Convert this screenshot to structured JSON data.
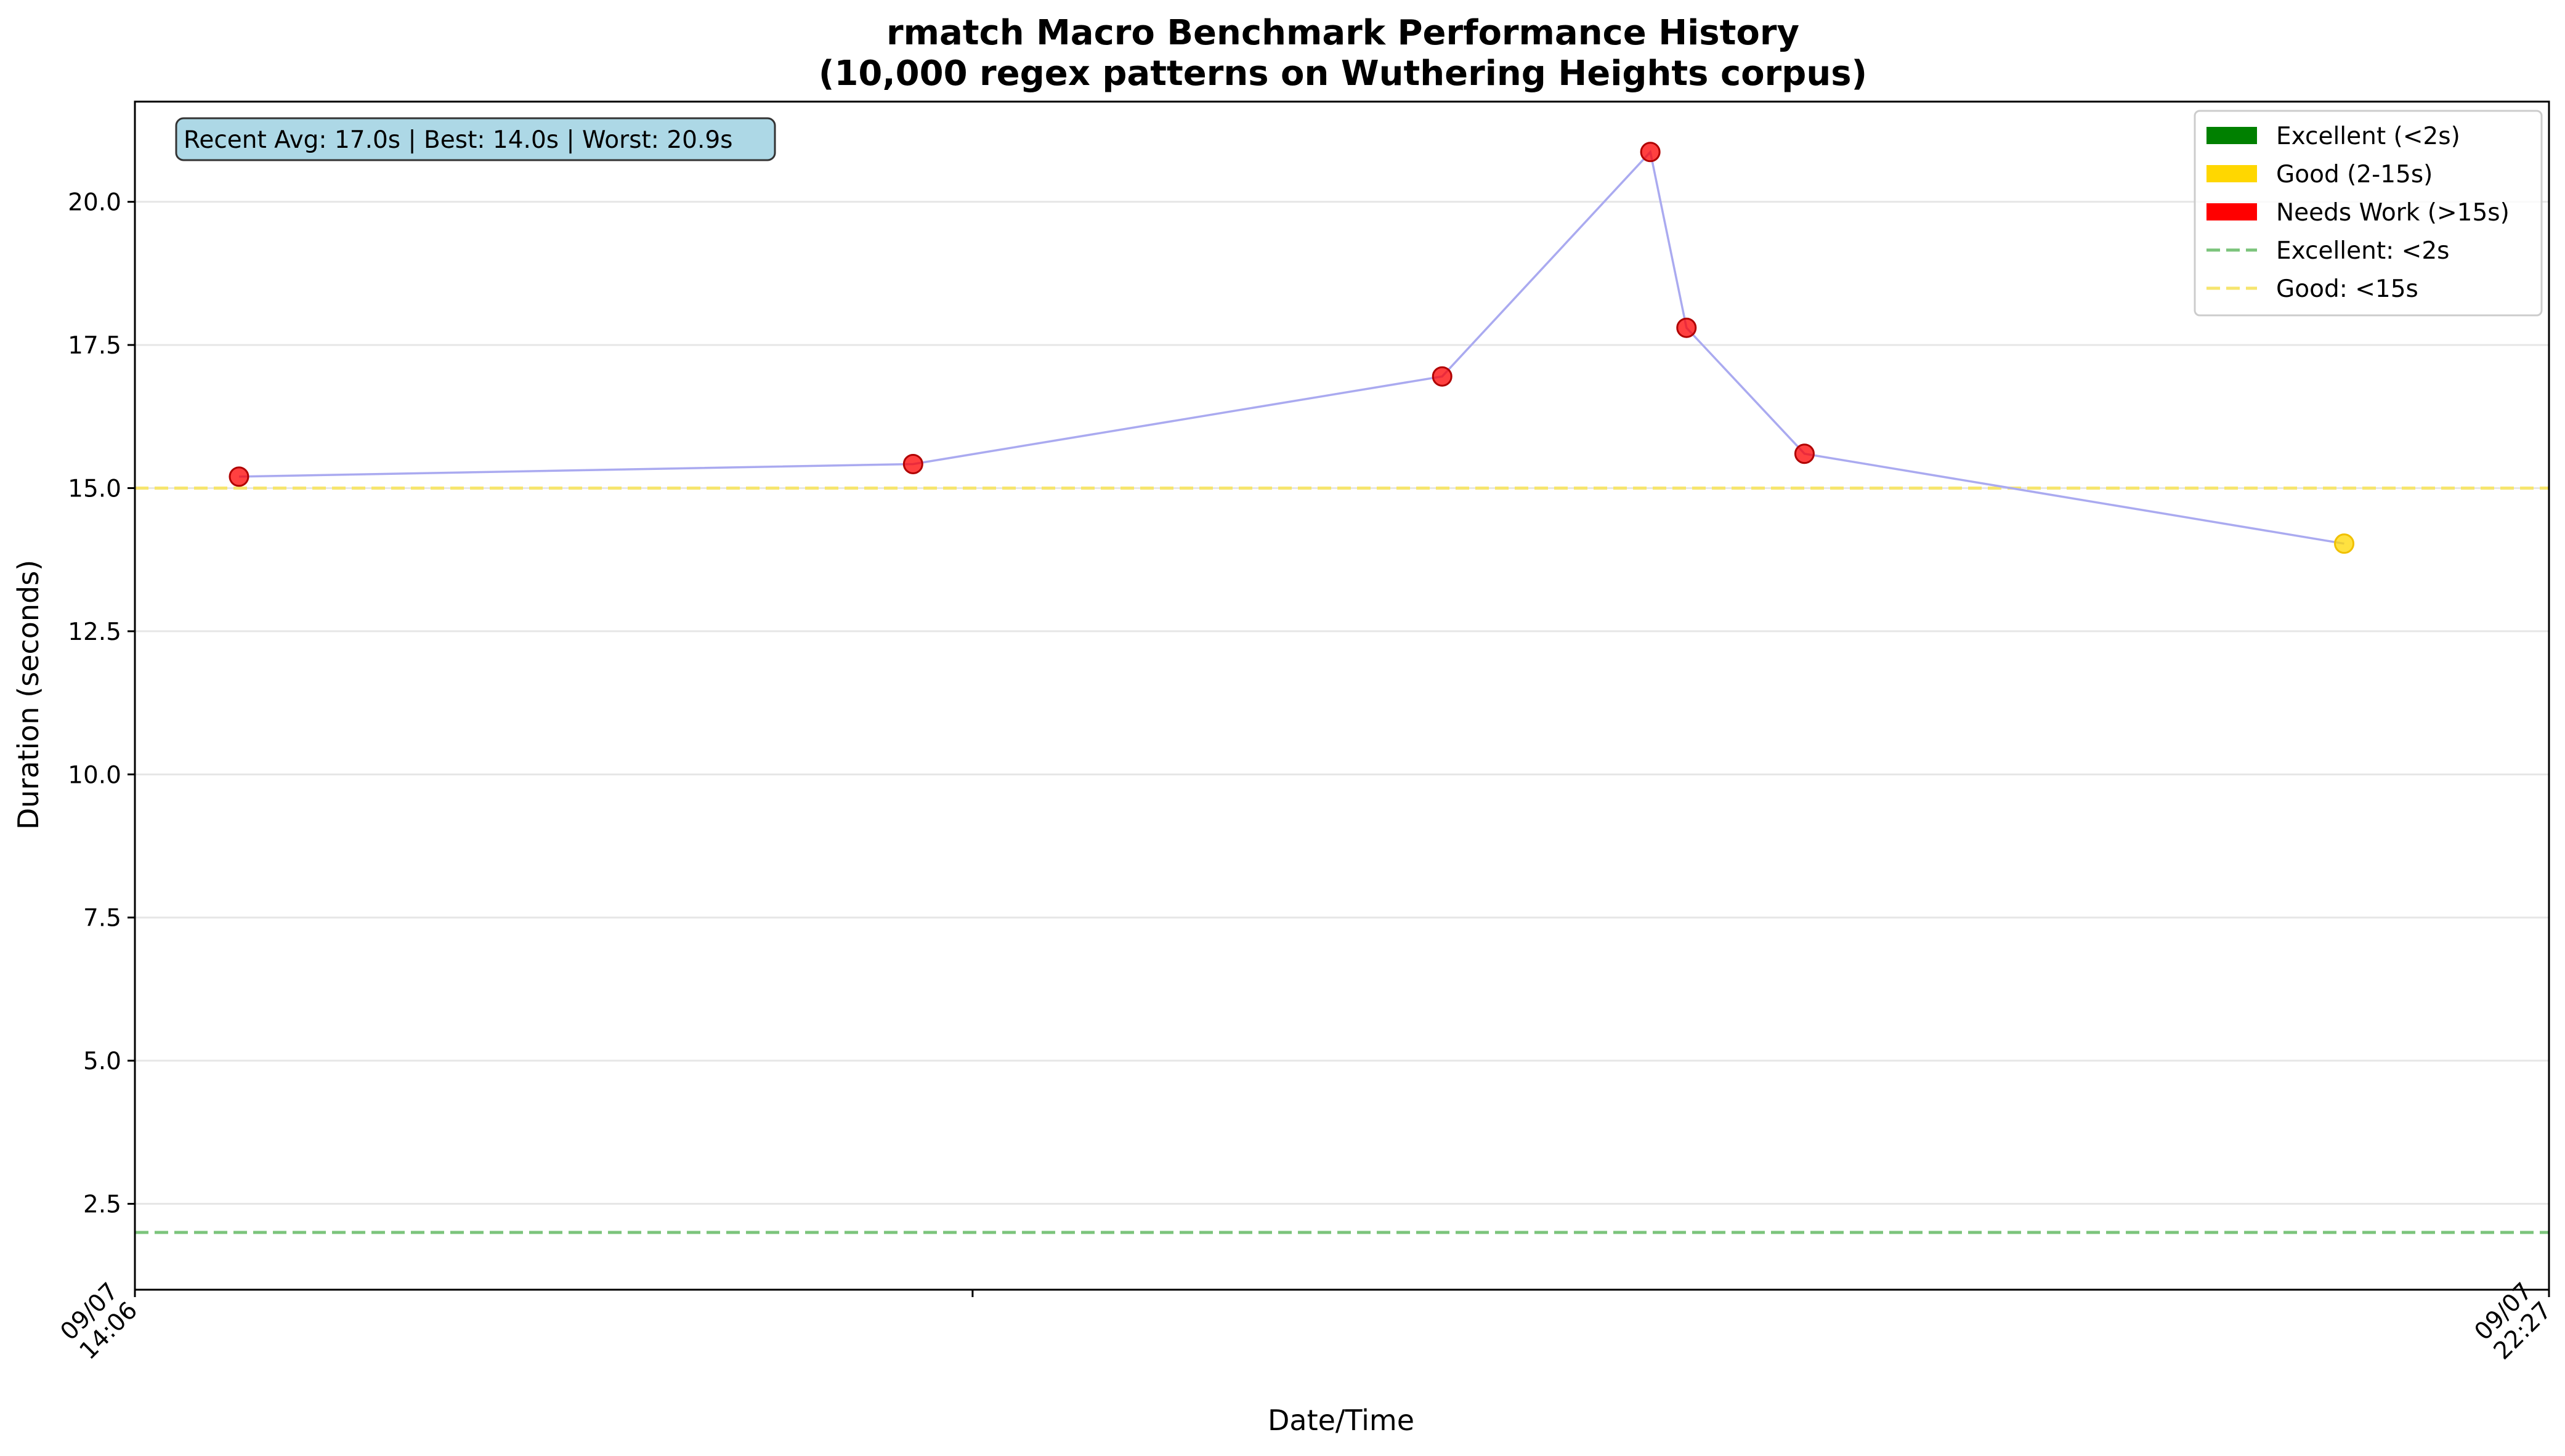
{
  "chart_data": {
    "type": "line",
    "title": "rmatch Macro Benchmark Performance History",
    "subtitle": "(10,000 regex patterns on Wuthering Heights corpus)",
    "xlabel": "Date/Time",
    "ylabel": "Duration (seconds)",
    "ylim": [
      1.0,
      21.75
    ],
    "yticks": [
      "2.5",
      "5.0",
      "7.5",
      "10.0",
      "12.5",
      "15.0",
      "17.5",
      "20.0"
    ],
    "xticks": [
      {
        "date": "09/07",
        "time": "14:06"
      },
      {
        "date": "09/07",
        "time": "22:27"
      }
    ],
    "x_range_minutes": [
      0,
      501
    ],
    "grid": "y",
    "legend_position": "top-right",
    "series": [
      {
        "values": [
          {
            "t": "09/07 14:24",
            "minutes": 21.6,
            "y": 15.2,
            "rating": "needs_work"
          },
          {
            "t": "09/07 16:43",
            "minutes": 161.5,
            "y": 15.42,
            "rating": "needs_work"
          },
          {
            "t": "09/07 18:33",
            "minutes": 271.3,
            "y": 16.95,
            "rating": "needs_work"
          },
          {
            "t": "09/07 19:16",
            "minutes": 314.5,
            "y": 20.87,
            "rating": "needs_work"
          },
          {
            "t": "09/07 19:23",
            "minutes": 322.0,
            "y": 17.8,
            "rating": "needs_work"
          },
          {
            "t": "09/07 19:48",
            "minutes": 346.5,
            "y": 15.6,
            "rating": "needs_work"
          },
          {
            "t": "09/07 21:40",
            "minutes": 458.5,
            "y": 14.03,
            "rating": "good"
          }
        ]
      }
    ],
    "thresholds": [
      {
        "label": "Excellent: <2s",
        "y": 2,
        "color": "#7cc47c"
      },
      {
        "label": "Good: <15s",
        "y": 15,
        "color": "#f6e56e"
      }
    ],
    "legend": [
      {
        "label": "Excellent (<2s)",
        "kind": "patch",
        "color": "#008000"
      },
      {
        "label": "Good (2-15s)",
        "kind": "patch",
        "color": "#ffd700"
      },
      {
        "label": "Needs Work (>15s)",
        "kind": "patch",
        "color": "#ff0000"
      },
      {
        "label": "Excellent: <2s",
        "kind": "dashed",
        "color": "#7cc47c"
      },
      {
        "label": "Good: <15s",
        "kind": "dashed",
        "color": "#f6e56e"
      }
    ],
    "stats_box": "Recent Avg: 17.0s | Best: 14.0s | Worst: 20.9s",
    "colors": {
      "line": "#aaaaf0",
      "needs_work": "#ff0000",
      "good": "#ffd700",
      "stats_bg": "#add8e6",
      "grid": "#e6e6e6"
    }
  }
}
